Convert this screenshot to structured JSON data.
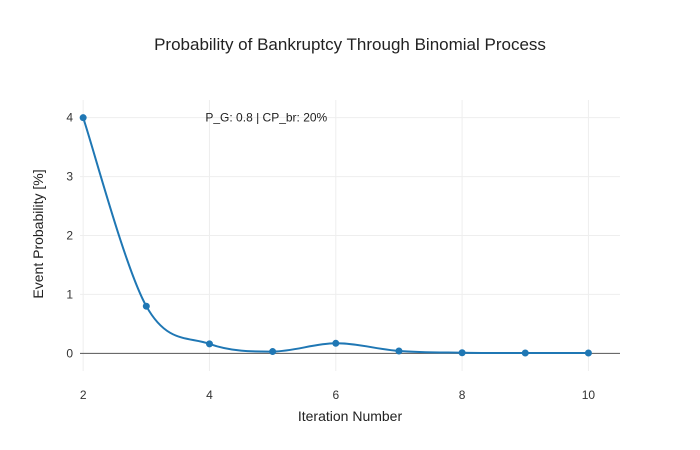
{
  "chart_data": {
    "type": "line",
    "title": "Probability of Bankruptcy Through Binomial Process",
    "xlabel": "Iteration Number",
    "ylabel": "Event Probability [%]",
    "xlim": [
      1.95,
      10.5
    ],
    "ylim": [
      -0.3,
      4.3
    ],
    "xticks": [
      2,
      4,
      6,
      8,
      10
    ],
    "yticks": [
      0,
      1,
      2,
      3,
      4
    ],
    "grid": true,
    "line_shape": "spline",
    "annotation": {
      "text": "P_G: 0.8 | CP_br: 20%",
      "x": 4.9,
      "y": 4.0
    },
    "series": [
      {
        "color": "#1f77b4",
        "x": [
          2,
          3,
          4,
          5,
          6,
          7,
          8,
          9,
          10
        ],
        "y": [
          4.0,
          0.8,
          0.16,
          0.03,
          0.17,
          0.04,
          0.01,
          0.005,
          0.005
        ]
      }
    ]
  }
}
